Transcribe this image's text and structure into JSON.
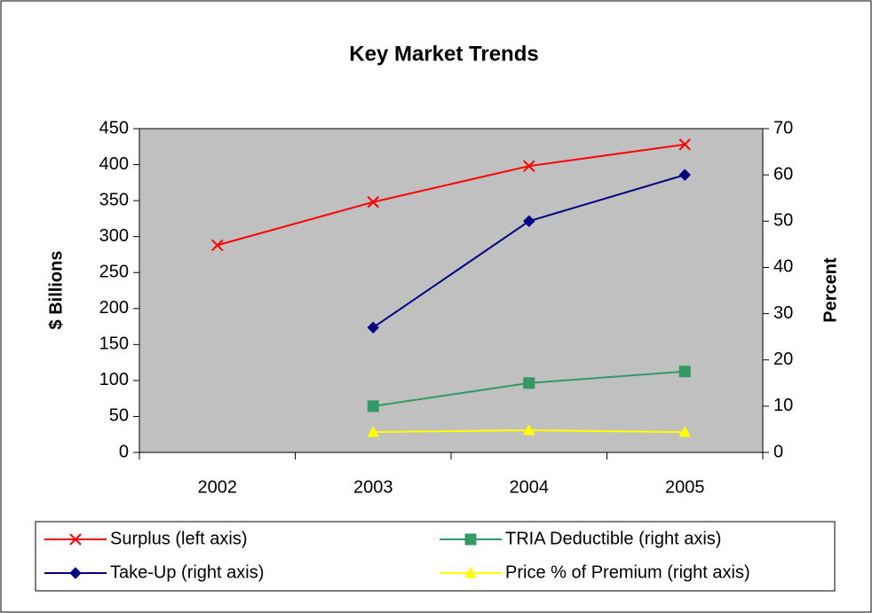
{
  "chart_data": {
    "type": "line",
    "title": "Key Market Trends",
    "categories": [
      "2002",
      "2003",
      "2004",
      "2005"
    ],
    "ylabel": "$ Billions",
    "y2label": "Percent",
    "ylim": [
      0,
      450
    ],
    "yticks": [
      0,
      50,
      100,
      150,
      200,
      250,
      300,
      350,
      400,
      450
    ],
    "y2lim": [
      0,
      70
    ],
    "y2ticks": [
      0,
      10,
      20,
      30,
      40,
      50,
      60,
      70
    ],
    "series": [
      {
        "name": "Surplus (left axis)",
        "color": "#ff0000",
        "marker": "x",
        "values": [
          288,
          348,
          398,
          428
        ]
      },
      {
        "name": "Take-Up (right axis)",
        "color": "#000080",
        "marker": "diamond",
        "axis": "y2",
        "values": [
          null,
          27,
          50,
          60
        ]
      },
      {
        "name": "TRIA Deductible (right axis)",
        "color": "#339966",
        "marker": "square",
        "axis": "y2",
        "values": [
          null,
          10,
          15,
          17.5
        ]
      },
      {
        "name": "Price % of Premium (right axis)",
        "color": "#ffff00",
        "marker": "triangle",
        "axis": "y2",
        "values": [
          null,
          4.4,
          4.8,
          4.4
        ]
      }
    ]
  }
}
